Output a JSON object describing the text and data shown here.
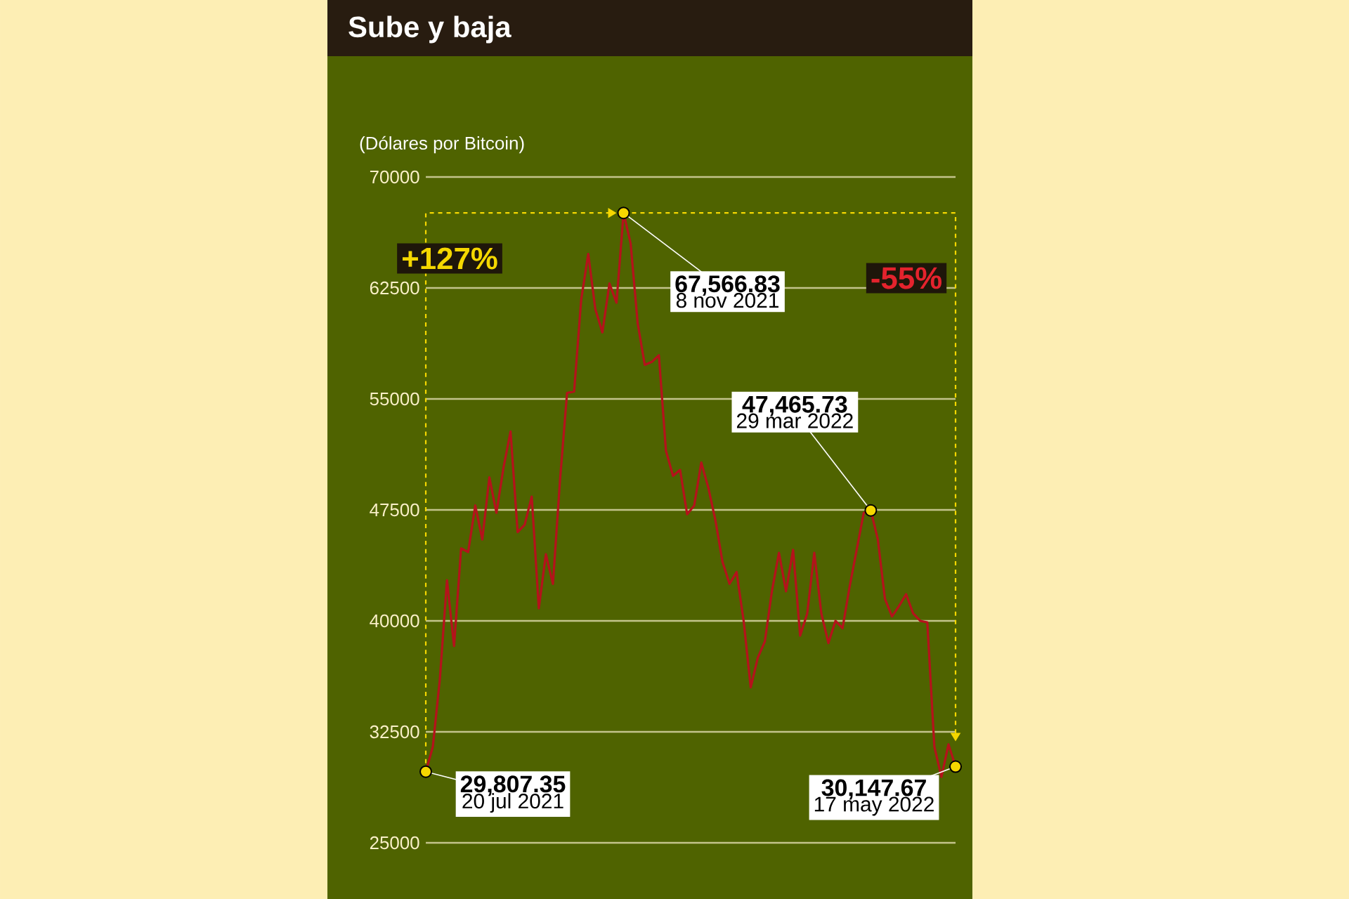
{
  "chart_data": {
    "type": "line",
    "title": "Sube y baja",
    "ylabel": "(Dólares por Bitcoin)",
    "categories": [
      null,
      null,
      null,
      null,
      null,
      null,
      null,
      null,
      null,
      null,
      null,
      null,
      null,
      null,
      null,
      null,
      null,
      null,
      null,
      null,
      null,
      null,
      null,
      null,
      null,
      null,
      null,
      null,
      null,
      null,
      null,
      null,
      null,
      null,
      null,
      null,
      null,
      null,
      null,
      null,
      null,
      null,
      null,
      null,
      null,
      null,
      null,
      null,
      null,
      null,
      null,
      null,
      null,
      null,
      null,
      null,
      null,
      null,
      null,
      null,
      null,
      null,
      null,
      null,
      null,
      null,
      null,
      null,
      null,
      null,
      null,
      null,
      null,
      null,
      null,
      null
    ],
    "values": [
      29807.35,
      31500,
      36100,
      42750,
      38300,
      44900,
      44650,
      47800,
      45500,
      49700,
      47300,
      50350,
      52800,
      46000,
      46500,
      48400,
      40850,
      44500,
      42500,
      49500,
      55400,
      55500,
      61700,
      64800,
      61070,
      59500,
      62800,
      61500,
      67566.83,
      65500,
      60100,
      57300,
      57500,
      57950,
      51500,
      49800,
      50200,
      47200,
      47800,
      50700,
      49000,
      46800,
      44000,
      42500,
      43300,
      40000,
      35500,
      37500,
      38600,
      42000,
      44600,
      42000,
      44800,
      39000,
      40500,
      44600,
      40500,
      38500,
      40000,
      39500,
      42300,
      44800,
      47300,
      47465.73,
      45500,
      41500,
      40300,
      41000,
      41800,
      40500,
      40000,
      39900,
      31500,
      29450,
      31650,
      30147.67
    ],
    "color": "#b5121b",
    "ylim": [
      25000,
      70000
    ],
    "yticks": [
      25000,
      32500,
      40000,
      47500,
      55000,
      62500,
      70000
    ],
    "grid": "y",
    "tick_labels": "y",
    "annotations": [
      "+127%",
      "-55%",
      "29,807.35",
      "20 jul 2021",
      "67,566.83",
      "8 nov 2021",
      "47,465.73",
      "29 mar 2022",
      "30,147.67",
      "17 may 2022"
    ]
  }
}
